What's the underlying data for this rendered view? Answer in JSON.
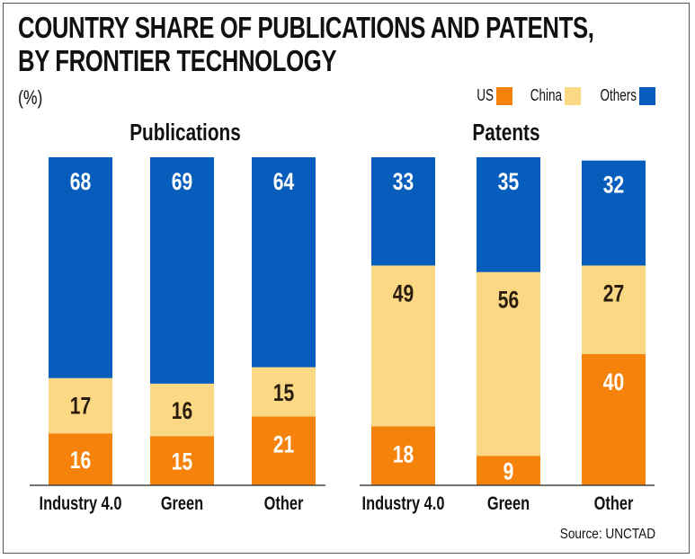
{
  "title_line1": "COUNTRY SHARE OF PUBLICATIONS AND PATENTS,",
  "title_line2": "BY FRONTIER TECHNOLOGY",
  "unit": "(%)",
  "source": "Source: UNCTAD",
  "legend": [
    {
      "label": "US",
      "color": "#f5820b"
    },
    {
      "label": "China",
      "color": "#fbd883"
    },
    {
      "label": "Others",
      "color": "#075dbb"
    }
  ],
  "chart_data": [
    {
      "type": "bar",
      "stacked": true,
      "title": "Publications",
      "categories": [
        "Industry 4.0",
        "Green",
        "Other"
      ],
      "ylim": [
        0,
        100
      ],
      "series": [
        {
          "name": "US",
          "values": [
            16,
            15,
            21
          ],
          "color": "#f5820b",
          "label_color": "#ffffff"
        },
        {
          "name": "China",
          "values": [
            17,
            16,
            15
          ],
          "color": "#fbd883",
          "label_color": "#2a1d10"
        },
        {
          "name": "Others",
          "values": [
            68,
            69,
            64
          ],
          "color": "#075dbb",
          "label_color": "#ffffff"
        }
      ]
    },
    {
      "type": "bar",
      "stacked": true,
      "title": "Patents",
      "categories": [
        "Industry 4.0",
        "Green",
        "Other"
      ],
      "ylim": [
        0,
        100
      ],
      "series": [
        {
          "name": "US",
          "values": [
            18,
            9,
            40
          ],
          "color": "#f5820b",
          "label_color": "#ffffff"
        },
        {
          "name": "China",
          "values": [
            49,
            56,
            27
          ],
          "color": "#fbd883",
          "label_color": "#2a1d10"
        },
        {
          "name": "Others",
          "values": [
            33,
            35,
            32
          ],
          "color": "#075dbb",
          "label_color": "#ffffff"
        }
      ]
    }
  ]
}
